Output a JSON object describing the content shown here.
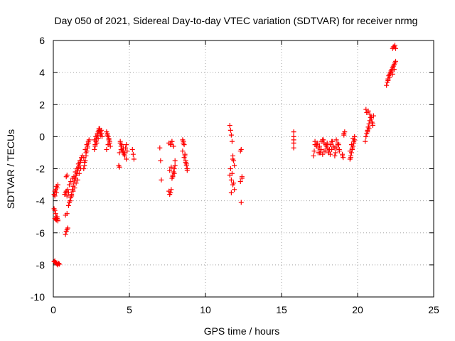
{
  "chart_data": {
    "type": "scatter",
    "title": "Day 050 of 2021, Sidereal Day-to-day VTEC variation (SDTVAR) for receiver nrmg",
    "xlabel": "GPS time / hours",
    "ylabel": "SDTVAR / TECUs",
    "xlim": [
      0,
      25
    ],
    "ylim": [
      -10,
      6
    ],
    "xticks": [
      0,
      5,
      10,
      15,
      20,
      25
    ],
    "yticks": [
      -10,
      -8,
      -6,
      -4,
      -2,
      0,
      2,
      4,
      6
    ],
    "grid": true,
    "marker": "plus",
    "color": "#ff0000",
    "series": [
      {
        "name": "SDTVAR",
        "x": [
          0.05,
          0.1,
          0.15,
          0.2,
          0.25,
          0.3,
          0.05,
          0.1,
          0.15,
          0.2,
          0.25,
          0.3,
          0.1,
          0.2,
          0.05,
          0.1,
          0.15,
          0.2,
          0.25,
          0.3,
          0.35,
          0.4,
          0.1,
          0.15,
          0.2,
          0.25,
          0.3,
          0.8,
          0.85,
          0.9,
          0.95,
          0.8,
          0.9,
          0.75,
          0.8,
          0.85,
          0.9,
          0.95,
          1.0,
          0.85,
          0.9,
          1.0,
          1.05,
          1.1,
          1.15,
          1.2,
          1.25,
          1.3,
          1.35,
          1.4,
          1.45,
          1.5,
          1.55,
          1.6,
          1.65,
          1.7,
          1.75,
          1.8,
          1.85,
          1.9,
          1.1,
          1.2,
          1.3,
          1.4,
          1.5,
          1.6,
          1.7,
          1.8,
          1.05,
          1.15,
          1.25,
          1.35,
          1.45,
          1.55,
          1.65,
          1.75,
          2.0,
          2.05,
          2.1,
          2.15,
          2.2,
          2.25,
          2.3,
          2.35,
          2.0,
          2.1,
          2.2,
          2.3,
          2.05,
          2.15,
          2.25,
          2.7,
          2.75,
          2.8,
          2.85,
          2.9,
          2.95,
          3.0,
          3.05,
          3.1,
          3.15,
          3.2,
          2.7,
          2.8,
          2.9,
          3.0,
          3.1,
          2.75,
          2.85,
          2.95,
          3.05,
          3.15,
          3.5,
          3.55,
          3.6,
          3.65,
          3.7,
          3.75,
          3.5,
          3.6,
          3.7,
          3.55,
          3.65,
          4.3,
          4.35,
          4.4,
          4.45,
          4.5,
          4.55,
          4.6,
          4.65,
          4.7,
          4.75,
          4.8,
          4.85,
          4.4,
          4.5,
          4.6,
          4.7,
          4.8,
          4.35,
          4.45,
          5.2,
          5.25,
          5.3,
          7.0,
          7.05,
          7.1,
          7.6,
          7.65,
          7.7,
          7.75,
          7.8,
          7.85,
          7.9,
          7.95,
          8.0,
          7.6,
          7.7,
          7.8,
          7.9,
          8.0,
          7.65,
          7.75,
          7.85,
          7.95,
          7.7,
          7.8,
          7.9,
          8.5,
          8.55,
          8.6,
          8.65,
          8.7,
          8.75,
          8.8,
          8.5,
          8.6,
          8.7,
          8.8,
          8.55,
          8.65,
          8.75,
          11.6,
          11.65,
          11.7,
          11.75,
          11.8,
          11.85,
          11.9,
          11.6,
          11.7,
          11.8,
          11.9,
          11.65,
          11.75,
          11.85,
          11.7,
          11.8,
          12.3,
          12.35,
          12.4,
          12.3,
          12.4,
          12.35,
          15.8,
          15.8,
          15.8,
          15.8,
          15.8,
          17.1,
          17.2,
          17.3,
          17.4,
          17.5,
          17.6,
          17.7,
          17.8,
          17.9,
          18.0,
          18.1,
          18.2,
          18.3,
          18.4,
          18.5,
          18.6,
          18.7,
          18.8,
          17.15,
          17.35,
          17.55,
          17.75,
          17.95,
          18.15,
          18.35,
          18.55,
          18.75,
          17.2,
          17.4,
          17.6,
          17.8,
          18.0,
          18.2,
          18.4,
          18.6,
          18.8,
          17.3,
          17.5,
          17.7,
          17.9,
          18.1,
          18.3,
          18.5,
          18.7,
          19.0,
          19.05,
          19.1,
          19.15,
          19.0,
          19.1,
          19.5,
          19.55,
          19.6,
          19.65,
          19.7,
          19.75,
          19.8,
          19.5,
          19.6,
          19.7,
          19.8,
          19.55,
          19.65,
          19.75,
          20.5,
          20.55,
          20.6,
          20.65,
          20.7,
          20.75,
          20.8,
          20.85,
          20.9,
          20.95,
          21.0,
          21.05,
          20.6,
          20.7,
          20.8,
          20.9,
          21.0,
          20.55,
          20.65,
          20.75,
          21.9,
          21.95,
          22.0,
          22.05,
          22.1,
          22.15,
          22.2,
          22.25,
          22.3,
          22.35,
          22.4,
          22.45,
          22.5,
          22.0,
          22.1,
          22.2,
          22.3,
          22.4,
          22.3,
          22.35,
          22.4,
          22.45,
          22.5
        ],
        "y": [
          -4.5,
          -4.6,
          -4.8,
          -5.0,
          -5.1,
          -5.2,
          -3.6,
          -3.4,
          -3.3,
          -3.5,
          -3.2,
          -3.0,
          -3.7,
          -3.1,
          -7.8,
          -7.75,
          -7.85,
          -7.9,
          -7.95,
          -8.0,
          -7.9,
          -7.95,
          -5.1,
          -5.15,
          -5.2,
          -5.0,
          -5.25,
          -6.1,
          -5.9,
          -5.8,
          -5.7,
          -4.9,
          -4.8,
          -3.6,
          -3.5,
          -3.4,
          -3.7,
          -3.3,
          -3.5,
          -2.5,
          -2.4,
          -4.3,
          -4.1,
          -4.0,
          -3.8,
          -3.6,
          -3.3,
          -3.1,
          -2.9,
          -2.7,
          -2.6,
          -2.4,
          -2.3,
          -2.1,
          -1.9,
          -1.8,
          -1.6,
          -1.5,
          -1.3,
          -1.2,
          -4.0,
          -3.7,
          -3.4,
          -3.2,
          -2.9,
          -2.7,
          -2.3,
          -2.0,
          -3.0,
          -2.8,
          -2.6,
          -2.5,
          -2.2,
          -2.0,
          -1.7,
          -1.5,
          -2.0,
          -1.8,
          -1.5,
          -1.2,
          -0.9,
          -0.7,
          -0.4,
          -0.2,
          -1.3,
          -0.8,
          -0.5,
          -0.3,
          -1.6,
          -1.0,
          -0.6,
          -0.8,
          -0.5,
          -0.3,
          -0.1,
          0.1,
          0.3,
          0.4,
          0.5,
          0.3,
          0.2,
          0.0,
          -0.2,
          0.0,
          0.2,
          0.5,
          0.1,
          -0.6,
          -0.4,
          -0.1,
          0.3,
          0.4,
          0.3,
          0.2,
          0.0,
          -0.2,
          -0.4,
          -0.6,
          -0.8,
          -0.5,
          -0.3,
          0.1,
          -0.1,
          -1.8,
          -1.9,
          -0.4,
          -0.6,
          -0.8,
          -0.9,
          -1.0,
          -1.1,
          -1.2,
          -0.7,
          -0.5,
          -0.9,
          -0.3,
          -0.5,
          -0.7,
          -1.0,
          -1.4,
          -1.0,
          -0.8,
          -0.8,
          -1.1,
          -1.4,
          -0.7,
          -1.5,
          -2.7,
          -3.4,
          -3.6,
          -3.5,
          -3.3,
          -2.6,
          -2.4,
          -2.2,
          -2.0,
          -1.8,
          -0.4,
          -0.5,
          -0.3,
          -0.6,
          -1.5,
          -2.1,
          -1.9,
          -2.5,
          -2.3,
          -0.4,
          -0.3,
          -0.6,
          -0.2,
          -0.3,
          -0.5,
          -1.1,
          -1.5,
          -1.8,
          -2.0,
          -0.9,
          -1.3,
          -1.6,
          -2.1,
          -0.4,
          -1.2,
          -1.7,
          0.7,
          0.4,
          0.1,
          -0.3,
          -1.2,
          -1.5,
          -1.8,
          -2.4,
          -2.7,
          -3.0,
          -3.3,
          -2.0,
          -2.3,
          -2.9,
          -3.5,
          -1.4,
          -0.9,
          -4.1,
          -2.5,
          -2.8,
          -2.6,
          -0.8,
          0.3,
          0.0,
          -0.4,
          -0.7,
          -0.2,
          -1.2,
          -0.3,
          -0.5,
          -1.0,
          -0.6,
          -0.8,
          -1.1,
          -0.4,
          -0.9,
          -0.7,
          -1.0,
          -0.5,
          -0.8,
          -0.6,
          -1.2,
          -0.7,
          -0.4,
          -0.9,
          -0.9,
          -0.4,
          -1.0,
          -0.2,
          -0.6,
          -0.8,
          -0.3,
          -1.0,
          -0.5,
          -0.5,
          -0.7,
          -0.3,
          -0.9,
          -0.4,
          -1.1,
          -0.6,
          -0.2,
          -0.8,
          -0.6,
          -1.0,
          -0.2,
          -0.5,
          -0.9,
          -0.3,
          -0.7,
          -0.5,
          -1.1,
          -1.3,
          0.2,
          0.3,
          -1.2,
          0.1,
          -1.4,
          -1.2,
          -1.0,
          -0.8,
          -0.6,
          -0.4,
          -0.2,
          -0.9,
          -0.5,
          -0.1,
          0.0,
          -1.3,
          -0.7,
          -0.3,
          -0.3,
          0.0,
          0.2,
          0.4,
          0.6,
          0.8,
          1.0,
          1.2,
          1.1,
          0.9,
          0.7,
          1.3,
          1.5,
          1.6,
          1.4,
          1.2,
          0.8,
          1.7,
          0.3,
          0.5,
          3.2,
          3.4,
          3.6,
          3.8,
          3.9,
          4.0,
          4.1,
          4.2,
          4.3,
          4.4,
          4.5,
          4.6,
          4.7,
          3.5,
          3.7,
          4.0,
          3.9,
          4.2,
          5.5,
          5.6,
          5.6,
          5.7,
          5.5
        ]
      }
    ]
  }
}
